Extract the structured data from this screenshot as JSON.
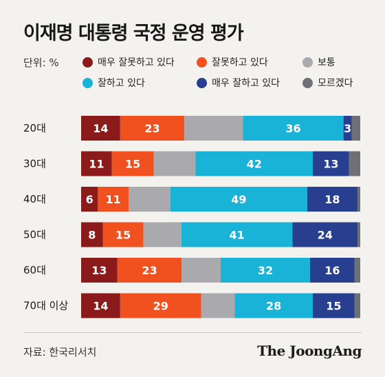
{
  "title": "이재명 대통령 국정 운영 평가",
  "unit": "단위: %",
  "source": "자료: 한국리서치",
  "brand": "The JoongAng",
  "chart_data": {
    "type": "bar",
    "orientation": "horizontal-stacked-100",
    "categories": [
      "20대",
      "30대",
      "40대",
      "50대",
      "60대",
      "70대 이상"
    ],
    "series": [
      {
        "name": "매우 잘못하고 있다",
        "color": "#8b1a1a",
        "values": [
          14,
          11,
          6,
          8,
          13,
          14
        ]
      },
      {
        "name": "잘못하고 있다",
        "color": "#f0511e",
        "values": [
          23,
          15,
          11,
          15,
          23,
          29
        ]
      },
      {
        "name": "보통",
        "color": "#a9a9ae",
        "values": [
          21,
          15,
          15,
          14,
          14,
          12
        ]
      },
      {
        "name": "잘하고 있다",
        "color": "#18b3d6",
        "values": [
          36,
          42,
          49,
          41,
          32,
          28
        ]
      },
      {
        "name": "매우 잘하고 있다",
        "color": "#283f8f",
        "values": [
          3,
          13,
          18,
          24,
          16,
          15
        ]
      },
      {
        "name": "모르겠다",
        "color": "#6f6f76",
        "values": [
          3,
          4,
          1,
          1,
          2,
          2
        ]
      }
    ],
    "labels": [
      [
        "14",
        "23",
        "",
        "36",
        "3",
        ""
      ],
      [
        "11",
        "15",
        "",
        "42",
        "13",
        ""
      ],
      [
        "6",
        "11",
        "",
        "49",
        "18",
        ""
      ],
      [
        "8",
        "15",
        "",
        "41",
        "24",
        ""
      ],
      [
        "13",
        "23",
        "",
        "32",
        "16",
        ""
      ],
      [
        "14",
        "29",
        "",
        "28",
        "15",
        ""
      ]
    ],
    "legend_position": "top"
  }
}
